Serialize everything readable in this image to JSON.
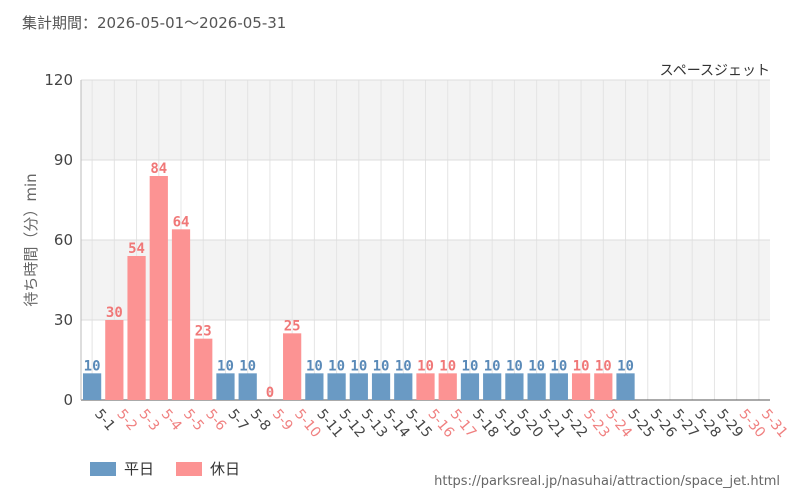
{
  "period_label": "集計期間：2026-05-01～2026-05-31",
  "source_url": "https://parksreal.jp/nasuhai/attraction/space_jet.html",
  "legend": {
    "weekday": "平日",
    "holiday": "休日"
  },
  "colors": {
    "weekday": "#6a9ac4",
    "holiday": "#fc9393",
    "weekday_label": "#444444",
    "holiday_label": "#f08080",
    "weekday_value": "#5a8ab8",
    "holiday_value": "#f07878"
  },
  "chart_data": {
    "type": "bar",
    "title": "スペースジェット",
    "ylabel": "待ち時間（分）min",
    "ylim": [
      0,
      120
    ],
    "yticks": [
      0,
      30,
      60,
      90,
      120
    ],
    "grid": true,
    "categories": [
      "5-1",
      "5-2",
      "5-3",
      "5-4",
      "5-5",
      "5-6",
      "5-7",
      "5-8",
      "5-9",
      "5-10",
      "5-11",
      "5-12",
      "5-13",
      "5-14",
      "5-15",
      "5-16",
      "5-17",
      "5-18",
      "5-19",
      "5-20",
      "5-21",
      "5-22",
      "5-23",
      "5-24",
      "5-25",
      "5-26",
      "5-27",
      "5-28",
      "5-29",
      "5-30",
      "5-31"
    ],
    "values": [
      10,
      30,
      54,
      84,
      64,
      23,
      10,
      10,
      0,
      25,
      10,
      10,
      10,
      10,
      10,
      10,
      10,
      10,
      10,
      10,
      10,
      10,
      10,
      10,
      10,
      null,
      null,
      null,
      null,
      null,
      null
    ],
    "day_type": [
      "weekday",
      "holiday",
      "holiday",
      "holiday",
      "holiday",
      "holiday",
      "weekday",
      "weekday",
      "holiday",
      "holiday",
      "weekday",
      "weekday",
      "weekday",
      "weekday",
      "weekday",
      "holiday",
      "holiday",
      "weekday",
      "weekday",
      "weekday",
      "weekday",
      "weekday",
      "holiday",
      "holiday",
      "weekday",
      "weekday",
      "weekday",
      "weekday",
      "weekday",
      "holiday",
      "holiday"
    ]
  }
}
